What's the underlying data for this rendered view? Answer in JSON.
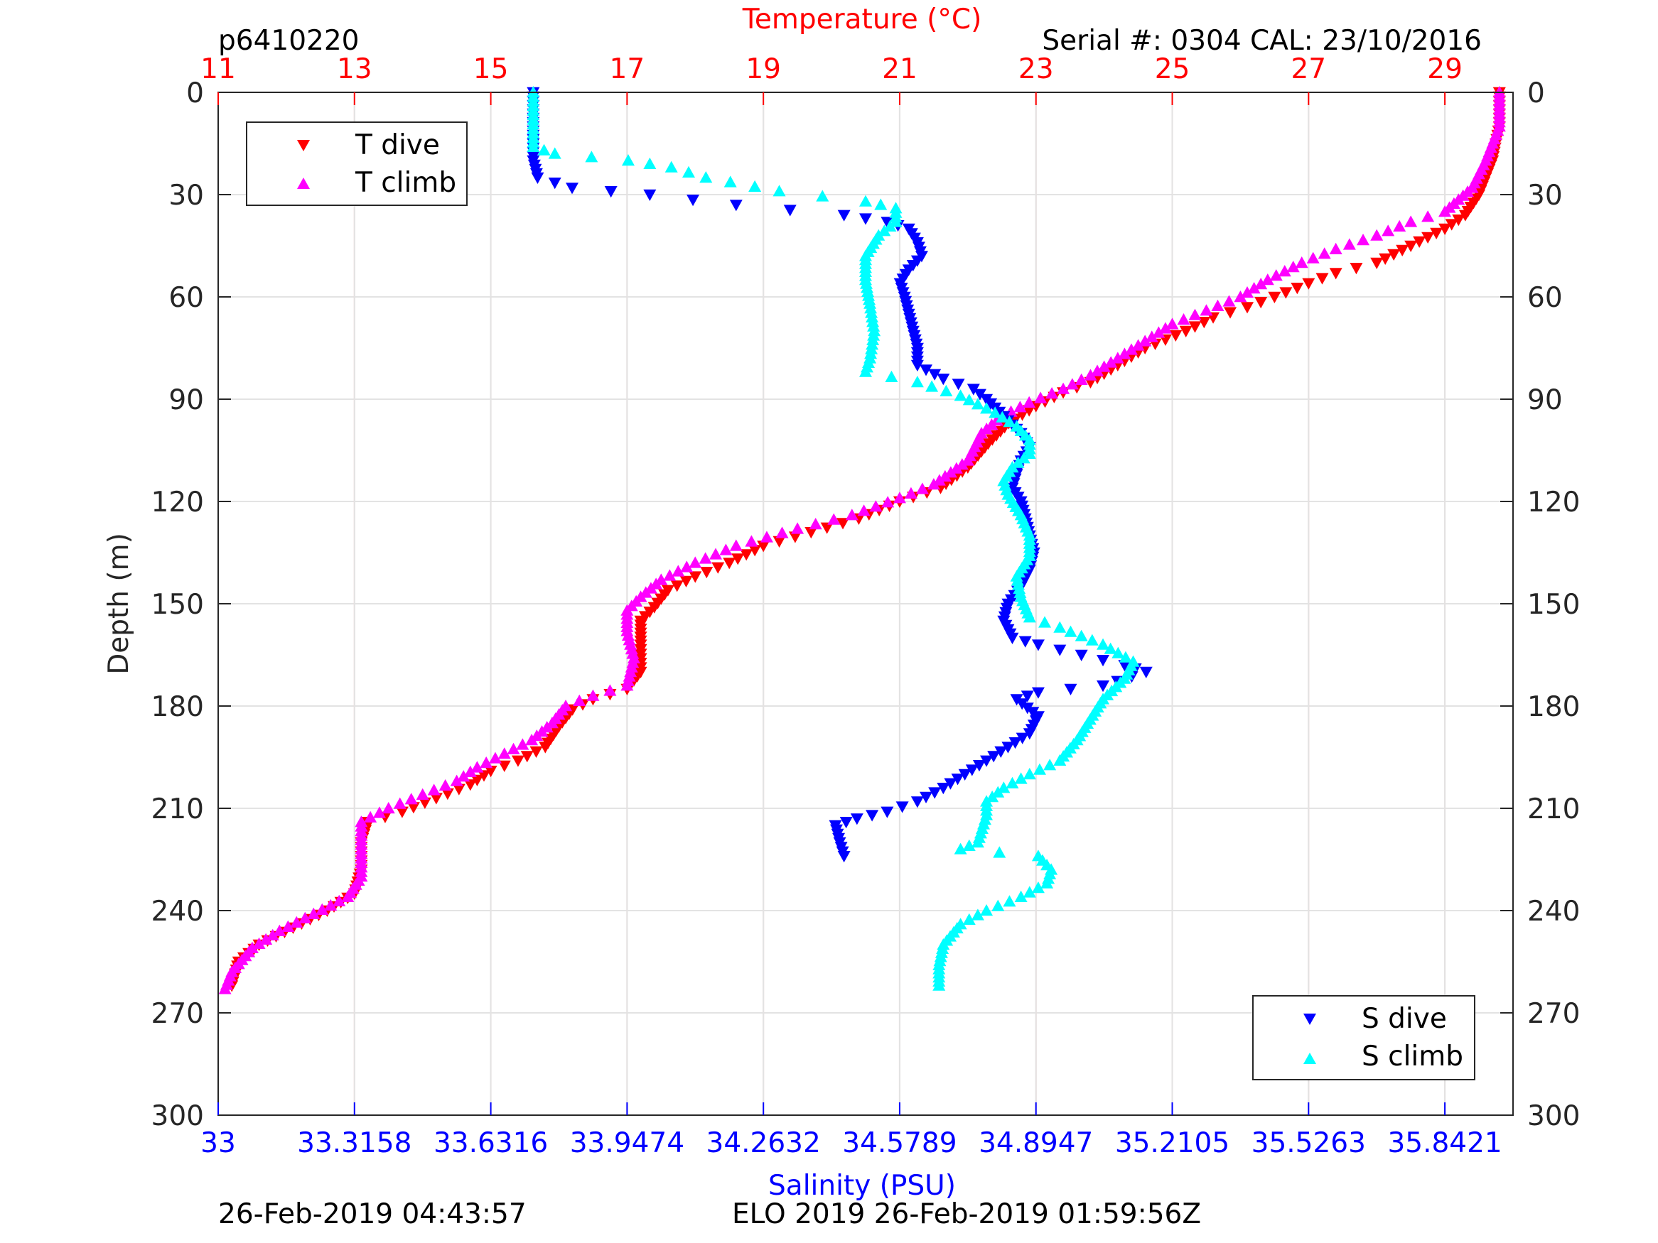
{
  "header": {
    "id_label": "p6410220",
    "serial_label": "Serial #: 0304  CAL: 23/10/2016"
  },
  "footer": {
    "left_timestamp": "26-Feb-2019 04:43:57",
    "right_label": "ELO 2019 26-Feb-2019 01:59:56Z"
  },
  "colors": {
    "t_dive": "#ff0000",
    "t_climb": "#ff00ff",
    "s_dive": "#0000ff",
    "s_climb": "#00ffff",
    "temperature_axis": "#ff0000",
    "salinity_axis": "#0000ff"
  },
  "legend_t": {
    "dive": "T dive",
    "climb": "T climb",
    "placement": "top-left"
  },
  "legend_s": {
    "dive": "S dive",
    "climb": "S climb",
    "placement": "bottom-right"
  },
  "chart_data": {
    "type": "scatter",
    "grid": true,
    "y_axis": {
      "label": "Depth (m)",
      "range": [
        0,
        300
      ],
      "reversed": true,
      "ticks": [
        "0",
        "30",
        "60",
        "90",
        "120",
        "150",
        "180",
        "210",
        "240",
        "270",
        "300"
      ]
    },
    "temperature_axis": {
      "label": "Temperature (°C)",
      "position": "top",
      "range": [
        11,
        30
      ],
      "ticks": [
        "11",
        "13",
        "15",
        "17",
        "19",
        "21",
        "23",
        "25",
        "27",
        "29"
      ],
      "tick_values": [
        11,
        13,
        15,
        17,
        19,
        21,
        23,
        25,
        27,
        29
      ]
    },
    "salinity_axis": {
      "label": "Salinity (PSU)",
      "position": "bottom",
      "range": [
        33,
        36
      ],
      "ticks": [
        "33",
        "33.3158",
        "33.6316",
        "33.9474",
        "34.2632",
        "34.5789",
        "34.8947",
        "35.2105",
        "35.5263",
        "35.8421"
      ],
      "tick_values": [
        33,
        33.3158,
        33.6316,
        33.9474,
        34.2632,
        34.5789,
        34.8947,
        35.2105,
        35.5263,
        35.8421
      ]
    },
    "series": [
      {
        "name": "T dive",
        "axis": "temperature",
        "marker": "triangle-down",
        "points": [
          [
            29.8,
            0
          ],
          [
            29.8,
            10
          ],
          [
            29.7,
            20
          ],
          [
            29.5,
            30
          ],
          [
            29.3,
            36
          ],
          [
            29.0,
            40
          ],
          [
            28.5,
            45
          ],
          [
            28.0,
            50
          ],
          [
            27.4,
            53
          ],
          [
            27.0,
            56
          ],
          [
            26.5,
            60
          ],
          [
            26.1,
            63
          ],
          [
            25.6,
            66
          ],
          [
            25.2,
            70
          ],
          [
            24.6,
            75
          ],
          [
            24.2,
            80
          ],
          [
            23.8,
            85
          ],
          [
            23.4,
            88
          ],
          [
            23.0,
            92
          ],
          [
            22.6,
            97
          ],
          [
            22.3,
            103
          ],
          [
            22.0,
            110
          ],
          [
            21.6,
            116
          ],
          [
            21.0,
            120
          ],
          [
            20.4,
            125
          ],
          [
            19.7,
            129
          ],
          [
            19.0,
            133
          ],
          [
            18.5,
            138
          ],
          [
            18.0,
            142
          ],
          [
            17.6,
            146
          ],
          [
            17.4,
            151
          ],
          [
            17.2,
            155
          ],
          [
            17.2,
            162
          ],
          [
            17.2,
            170
          ],
          [
            17.0,
            175
          ],
          [
            16.5,
            178
          ],
          [
            16.2,
            181
          ],
          [
            16.0,
            186
          ],
          [
            15.8,
            192
          ],
          [
            15.4,
            196
          ],
          [
            15.0,
            199
          ],
          [
            14.7,
            203
          ],
          [
            14.2,
            207
          ],
          [
            13.7,
            211
          ],
          [
            13.2,
            214
          ],
          [
            13.1,
            220
          ],
          [
            13.1,
            228
          ],
          [
            13.0,
            235
          ],
          [
            12.6,
            240
          ],
          [
            12.1,
            245
          ],
          [
            11.6,
            250
          ],
          [
            11.3,
            255
          ],
          [
            11.2,
            262
          ]
        ]
      },
      {
        "name": "T climb",
        "axis": "temperature",
        "marker": "triangle-up",
        "points": [
          [
            29.8,
            0
          ],
          [
            29.8,
            10
          ],
          [
            29.6,
            20
          ],
          [
            29.4,
            28
          ],
          [
            29.0,
            35
          ],
          [
            28.5,
            38
          ],
          [
            28.0,
            42
          ],
          [
            27.4,
            46
          ],
          [
            26.9,
            50
          ],
          [
            26.4,
            55
          ],
          [
            26.0,
            60
          ],
          [
            25.5,
            64
          ],
          [
            25.0,
            68
          ],
          [
            24.6,
            73
          ],
          [
            24.2,
            78
          ],
          [
            23.8,
            83
          ],
          [
            23.4,
            87
          ],
          [
            22.9,
            91
          ],
          [
            22.5,
            95
          ],
          [
            22.2,
            100
          ],
          [
            22.0,
            108
          ],
          [
            21.5,
            115
          ],
          [
            21.0,
            119
          ],
          [
            20.3,
            124
          ],
          [
            19.5,
            128
          ],
          [
            18.6,
            133
          ],
          [
            18.0,
            138
          ],
          [
            17.5,
            143
          ],
          [
            17.2,
            148
          ],
          [
            17.0,
            152
          ],
          [
            17.0,
            158
          ],
          [
            17.1,
            166
          ],
          [
            17.0,
            174
          ],
          [
            16.5,
            177
          ],
          [
            16.1,
            180
          ],
          [
            15.9,
            185
          ],
          [
            15.6,
            190
          ],
          [
            15.2,
            194
          ],
          [
            14.8,
            198
          ],
          [
            14.5,
            202
          ],
          [
            14.0,
            206
          ],
          [
            13.5,
            210
          ],
          [
            13.1,
            214
          ],
          [
            13.1,
            222
          ],
          [
            13.1,
            230
          ],
          [
            12.9,
            236
          ],
          [
            12.4,
            241
          ],
          [
            11.9,
            246
          ],
          [
            11.5,
            251
          ],
          [
            11.2,
            258
          ],
          [
            11.1,
            263
          ]
        ]
      },
      {
        "name": "S dive",
        "axis": "salinity",
        "marker": "triangle-down",
        "points": [
          [
            33.73,
            0
          ],
          [
            33.73,
            10
          ],
          [
            33.73,
            20
          ],
          [
            33.74,
            25
          ],
          [
            33.82,
            28
          ],
          [
            34.0,
            30
          ],
          [
            34.2,
            33
          ],
          [
            34.45,
            36
          ],
          [
            34.55,
            38
          ],
          [
            34.6,
            40
          ],
          [
            34.62,
            44
          ],
          [
            34.63,
            48
          ],
          [
            34.6,
            52
          ],
          [
            34.58,
            56
          ],
          [
            34.59,
            60
          ],
          [
            34.6,
            65
          ],
          [
            34.61,
            70
          ],
          [
            34.62,
            75
          ],
          [
            34.62,
            80
          ],
          [
            34.68,
            84
          ],
          [
            34.75,
            87
          ],
          [
            34.78,
            90
          ],
          [
            34.82,
            95
          ],
          [
            34.86,
            100
          ],
          [
            34.88,
            104
          ],
          [
            34.86,
            108
          ],
          [
            34.85,
            112
          ],
          [
            34.84,
            116
          ],
          [
            34.86,
            120
          ],
          [
            34.87,
            125
          ],
          [
            34.88,
            130
          ],
          [
            34.89,
            135
          ],
          [
            34.88,
            140
          ],
          [
            34.86,
            145
          ],
          [
            34.83,
            150
          ],
          [
            34.82,
            155
          ],
          [
            34.84,
            160
          ],
          [
            34.9,
            162
          ],
          [
            35.0,
            165
          ],
          [
            35.1,
            168
          ],
          [
            35.15,
            170
          ],
          [
            35.05,
            174
          ],
          [
            34.9,
            176
          ],
          [
            34.85,
            178
          ],
          [
            34.9,
            183
          ],
          [
            34.88,
            188
          ],
          [
            34.83,
            192
          ],
          [
            34.78,
            196
          ],
          [
            34.73,
            200
          ],
          [
            34.68,
            204
          ],
          [
            34.62,
            208
          ],
          [
            34.55,
            211
          ],
          [
            34.48,
            213
          ],
          [
            34.43,
            215
          ],
          [
            34.44,
            220
          ],
          [
            34.45,
            224
          ]
        ]
      },
      {
        "name": "S climb",
        "axis": "salinity",
        "marker": "triangle-up",
        "points": [
          [
            33.73,
            0
          ],
          [
            33.73,
            8
          ],
          [
            33.73,
            16
          ],
          [
            33.78,
            18
          ],
          [
            33.95,
            20
          ],
          [
            34.05,
            22
          ],
          [
            34.13,
            25
          ],
          [
            34.3,
            29
          ],
          [
            34.5,
            32
          ],
          [
            34.57,
            34
          ],
          [
            34.57,
            38
          ],
          [
            34.53,
            42
          ],
          [
            34.5,
            48
          ],
          [
            34.5,
            55
          ],
          [
            34.51,
            62
          ],
          [
            34.52,
            70
          ],
          [
            34.51,
            78
          ],
          [
            34.5,
            82
          ],
          [
            34.62,
            85
          ],
          [
            34.72,
            89
          ],
          [
            34.8,
            94
          ],
          [
            34.85,
            98
          ],
          [
            34.88,
            102
          ],
          [
            34.88,
            106
          ],
          [
            34.84,
            110
          ],
          [
            34.82,
            114
          ],
          [
            34.83,
            118
          ],
          [
            34.86,
            124
          ],
          [
            34.88,
            130
          ],
          [
            34.88,
            136
          ],
          [
            34.85,
            142
          ],
          [
            34.86,
            148
          ],
          [
            34.88,
            154
          ],
          [
            34.95,
            157
          ],
          [
            35.05,
            162
          ],
          [
            35.12,
            167
          ],
          [
            35.1,
            172
          ],
          [
            35.05,
            178
          ],
          [
            35.02,
            184
          ],
          [
            34.99,
            190
          ],
          [
            34.95,
            196
          ],
          [
            34.88,
            200
          ],
          [
            34.82,
            204
          ],
          [
            34.78,
            208
          ],
          [
            34.78,
            212
          ],
          [
            34.77,
            216
          ],
          [
            34.76,
            220
          ],
          [
            34.72,
            222
          ],
          [
            34.9,
            224
          ],
          [
            34.93,
            228
          ],
          [
            34.92,
            232
          ],
          [
            34.86,
            236
          ],
          [
            34.78,
            240
          ],
          [
            34.72,
            244
          ],
          [
            34.68,
            250
          ],
          [
            34.67,
            256
          ],
          [
            34.67,
            262
          ]
        ]
      }
    ]
  }
}
